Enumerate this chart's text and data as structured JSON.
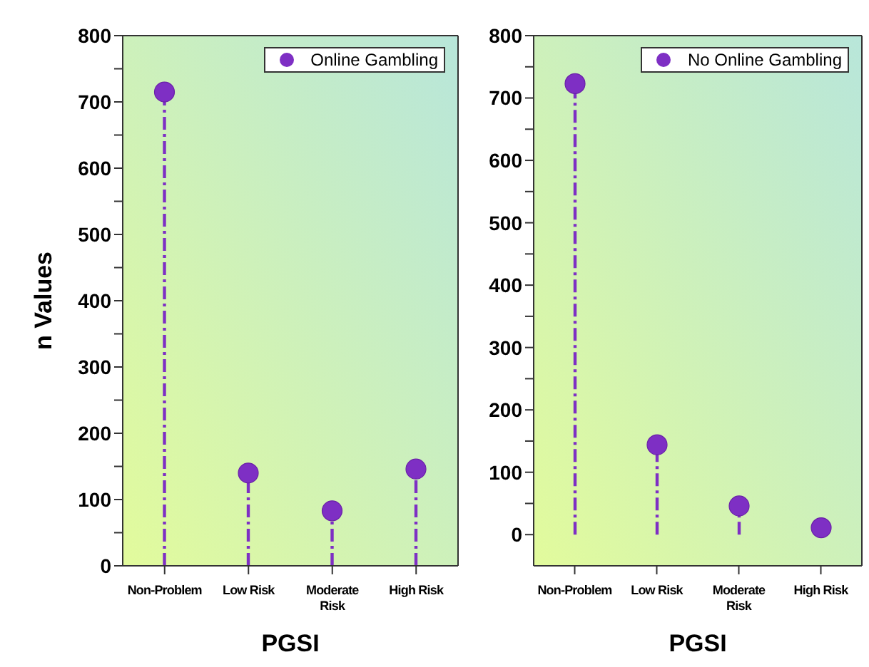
{
  "chart_data": [
    {
      "type": "lollipop",
      "xlabel": "PGSI",
      "ylabel": "n Values",
      "categories": [
        "Non-Problem",
        "Low Risk",
        "Moderate Risk",
        "High Risk"
      ],
      "series": [
        {
          "name": "Online Gambling",
          "color": "#7e2fc4",
          "values": [
            715,
            140,
            83,
            146
          ]
        }
      ],
      "ylim": [
        0,
        800
      ],
      "yticks": [
        0,
        {
          "value": 50,
          "label": null
        },
        100,
        {
          "value": 150,
          "label": null
        },
        200,
        {
          "value": 250,
          "label": null
        },
        300,
        {
          "value": 350,
          "label": null
        },
        400,
        {
          "value": 450,
          "label": null
        },
        500,
        {
          "value": 550,
          "label": null
        },
        600,
        {
          "value": 650,
          "label": null
        },
        700,
        {
          "value": 750,
          "label": null
        },
        800
      ],
      "legend": "top right",
      "marker": "circle",
      "line_style": "dashed"
    },
    {
      "type": "lollipop",
      "xlabel": "PGSI",
      "categories": [
        "Non-Problem",
        "Low Risk",
        "Moderate Risk",
        "High Risk"
      ],
      "series": [
        {
          "name": "No Online Gambling",
          "color": "#7e2fc4",
          "values": [
            723,
            144,
            46,
            11
          ]
        }
      ],
      "ylim": [
        -50,
        800
      ],
      "yticks": [
        0,
        {
          "value": 50,
          "label": null
        },
        100,
        {
          "value": 150,
          "label": null
        },
        200,
        {
          "value": 250,
          "label": null
        },
        300,
        {
          "value": 350,
          "label": null
        },
        400,
        {
          "value": 450,
          "label": null
        },
        500,
        {
          "value": 550,
          "label": null
        },
        600,
        {
          "value": 650,
          "label": null
        },
        700,
        {
          "value": 750,
          "label": null
        },
        800
      ],
      "legend": "top right",
      "marker": "circle",
      "line_style": "dashed"
    }
  ]
}
